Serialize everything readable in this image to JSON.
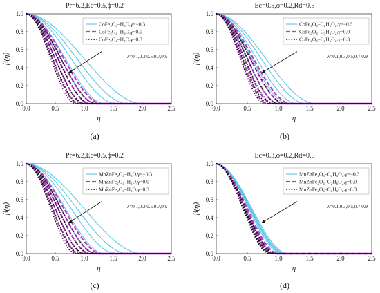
{
  "colors": {
    "gamma_neg": "#5bc8e8",
    "gamma_zero": "#b03fc4",
    "gamma_pos": "#111111",
    "arrow": "#111111",
    "frame": "#444444"
  },
  "chart_data": [
    {
      "type": "line",
      "panel_label": "(a)",
      "title": "Pr=6.2,Ec=0.5,ϕ=0.2",
      "xlabel": "η",
      "ylabel": "β(η)",
      "xlim": [
        0.0,
        2.5
      ],
      "ylim": [
        0.0,
        1.0
      ],
      "x_ticks": [
        "0.0",
        "0.5",
        "1.0",
        "1.5",
        "2.0",
        "2.5"
      ],
      "y_ticks": [
        "0.0",
        "0.2",
        "0.4",
        "0.6",
        "0.8",
        "1.0"
      ],
      "grid": false,
      "legend_position": "top-right",
      "legend": [
        "CoFe₂O₄–H₂O,γ=−0.3",
        "CoFe₂O₄–H₂O,γ=0.0",
        "CoFe₂O₄–H₂O,γ=0.3"
      ],
      "annotation": "λ=0.1,0.3,0.5,0.7,0.9",
      "lambda": [
        0.1,
        0.3,
        0.5,
        0.7,
        0.9
      ],
      "series": [
        {
          "gamma": -0.3,
          "style": "solid",
          "cutoff": [
            2.0,
            1.75,
            1.55,
            1.35,
            1.2
          ]
        },
        {
          "gamma": 0.0,
          "style": "dashed",
          "cutoff": [
            1.3,
            1.2,
            1.1,
            1.0,
            0.9
          ]
        },
        {
          "gamma": 0.3,
          "style": "dotted",
          "cutoff": [
            1.2,
            1.1,
            1.0,
            0.92,
            0.85
          ]
        }
      ]
    },
    {
      "type": "line",
      "panel_label": "(b)",
      "title": "Ec=0.5,ϕ=0.2,Rd=0.5",
      "xlabel": "η",
      "ylabel": "β(η)",
      "xlim": [
        0.0,
        2.5
      ],
      "ylim": [
        0.0,
        1.0
      ],
      "x_ticks": [
        "0.0",
        "0.5",
        "1.0",
        "1.5",
        "2.0",
        "2.5"
      ],
      "y_ticks": [
        "0.0",
        "0.2",
        "0.4",
        "0.6",
        "0.8",
        "1.0"
      ],
      "grid": false,
      "legend_position": "top-right",
      "legend": [
        "CoFe₂O₄–C₂H₆O₂,γ=−0.3",
        "CoFe₂O₄–C₂H₆O₂,γ=0.0",
        "CoFe₂O₄–C₂H₆O₂,γ=0.3"
      ],
      "annotation": "λ=0.1,0.3,0.5,0.7,0.9",
      "lambda": [
        0.1,
        0.3,
        0.5,
        0.7,
        0.9
      ],
      "series": [
        {
          "gamma": -0.3,
          "style": "solid",
          "cutoff": [
            1.6,
            1.45,
            1.3,
            1.15,
            1.0
          ]
        },
        {
          "gamma": 0.0,
          "style": "dashed",
          "cutoff": [
            1.2,
            1.1,
            1.0,
            0.9,
            0.82
          ]
        },
        {
          "gamma": 0.3,
          "style": "dotted",
          "cutoff": [
            1.1,
            1.0,
            0.92,
            0.85,
            0.78
          ]
        }
      ]
    },
    {
      "type": "line",
      "panel_label": "(c)",
      "title": "Pr=6.2,Ec=0.5,ϕ=0.2",
      "xlabel": "η",
      "ylabel": "β(η)",
      "xlim": [
        0.0,
        2.5
      ],
      "ylim": [
        0.0,
        1.0
      ],
      "x_ticks": [
        "0.0",
        "0.5",
        "1.0",
        "1.5",
        "2.0",
        "2.5"
      ],
      "y_ticks": [
        "0.0",
        "0.2",
        "0.4",
        "0.6",
        "0.8",
        "1.0"
      ],
      "grid": false,
      "legend_position": "top-right",
      "legend": [
        "MnZnFe₂O₄–H₂O,γ=−0.3",
        "MnZnFe₂O₄–H₂O,γ=0.0",
        "MnZnFe₂O₄–H₂O,γ=0.3"
      ],
      "annotation": "λ=0.1,0.3,0.5,0.7,0.9",
      "lambda": [
        0.1,
        0.3,
        0.5,
        0.7,
        0.9
      ],
      "series": [
        {
          "gamma": -0.3,
          "style": "solid",
          "cutoff": [
            2.0,
            1.75,
            1.55,
            1.35,
            1.2
          ]
        },
        {
          "gamma": 0.0,
          "style": "dashed",
          "cutoff": [
            1.3,
            1.2,
            1.1,
            1.0,
            0.9
          ]
        },
        {
          "gamma": 0.3,
          "style": "dotted",
          "cutoff": [
            1.2,
            1.1,
            1.0,
            0.92,
            0.85
          ]
        }
      ]
    },
    {
      "type": "line",
      "panel_label": "(d)",
      "title": "Ec=0.3,ϕ=0.2,Rd=0.5",
      "xlabel": "η",
      "ylabel": "β(η)",
      "xlim": [
        0.0,
        2.5
      ],
      "ylim": [
        0.0,
        1.0
      ],
      "x_ticks": [
        "0.0",
        "0.5",
        "1.0",
        "1.5",
        "2.0",
        "2.5"
      ],
      "y_ticks": [
        "0.0",
        "0.2",
        "0.4",
        "0.6",
        "0.8",
        "1.0"
      ],
      "grid": false,
      "legend_position": "top-right",
      "legend": [
        "MnZnFe₂O₄–C₂H₆O₂,γ=−0.3",
        "MnZnFe₂O₄–C₂H₆O₂,γ=0.0",
        "MnZnFe₂O₄–C₂H₆O₂,γ=0.3"
      ],
      "annotation": "λ=0.1,0.3,0.5,0.7,0.9",
      "lambda": [
        0.1,
        0.3,
        0.5,
        0.7,
        0.9
      ],
      "series": [
        {
          "gamma": -0.3,
          "style": "solid",
          "cutoff": [
            1.15,
            1.12,
            1.1,
            1.08,
            1.05
          ]
        },
        {
          "gamma": 0.0,
          "style": "dashed",
          "cutoff": [
            1.0,
            0.97,
            0.95,
            0.93,
            0.9
          ]
        },
        {
          "gamma": 0.3,
          "style": "dotted",
          "cutoff": [
            0.95,
            0.92,
            0.9,
            0.88,
            0.86
          ]
        }
      ]
    }
  ]
}
